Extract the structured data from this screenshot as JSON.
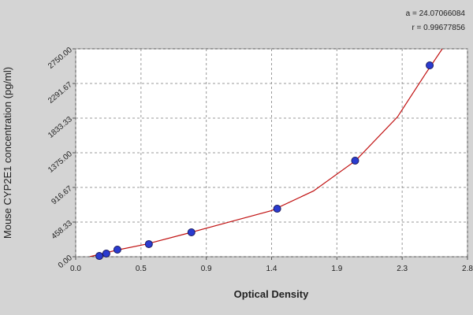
{
  "chart_data": {
    "type": "scatter",
    "x_label": "Optical Density",
    "y_label": "Mouse CYP2E1 concentration (pg/ml)",
    "annotations": [
      "a = 24.07066084",
      "r = 0.99677856"
    ],
    "xlim": [
      0,
      2.8
    ],
    "xticks": [
      {
        "value": 0,
        "label": "0.0"
      },
      {
        "value": 0.4667,
        "label": "0.5"
      },
      {
        "value": 0.9333,
        "label": "0.9"
      },
      1.4,
      {
        "value": 1.8667,
        "label": "1.9"
      },
      {
        "value": 2.3333,
        "label": "2.3"
      },
      2.8
    ],
    "ylim": [
      0,
      2750
    ],
    "yticks": [
      {
        "value": 0,
        "label": "0.00"
      },
      458.33,
      916.67,
      {
        "value": 1375,
        "label": "1375.00"
      },
      1833.33,
      2291.67,
      {
        "value": 2750,
        "label": "2750.00"
      }
    ],
    "grid": true,
    "series": [
      {
        "type": "scatter",
        "color": "#2a3bd0",
        "x": [
          0.169,
          0.219,
          0.298,
          0.523,
          0.827,
          1.44,
          1.997,
          2.53
        ],
        "values": [
          10,
          42,
          94,
          167,
          323,
          635,
          1271,
          2531
        ]
      },
      {
        "type": "line",
        "color": "#c01010",
        "x": [
          0.1,
          0.3,
          0.5,
          0.8,
          1.1,
          1.4,
          1.7,
          2.0,
          2.3,
          2.5,
          2.62
        ],
        "values": [
          0,
          90,
          165,
          310,
          460,
          610,
          870,
          1270,
          1850,
          2420,
          2750
        ]
      }
    ]
  }
}
